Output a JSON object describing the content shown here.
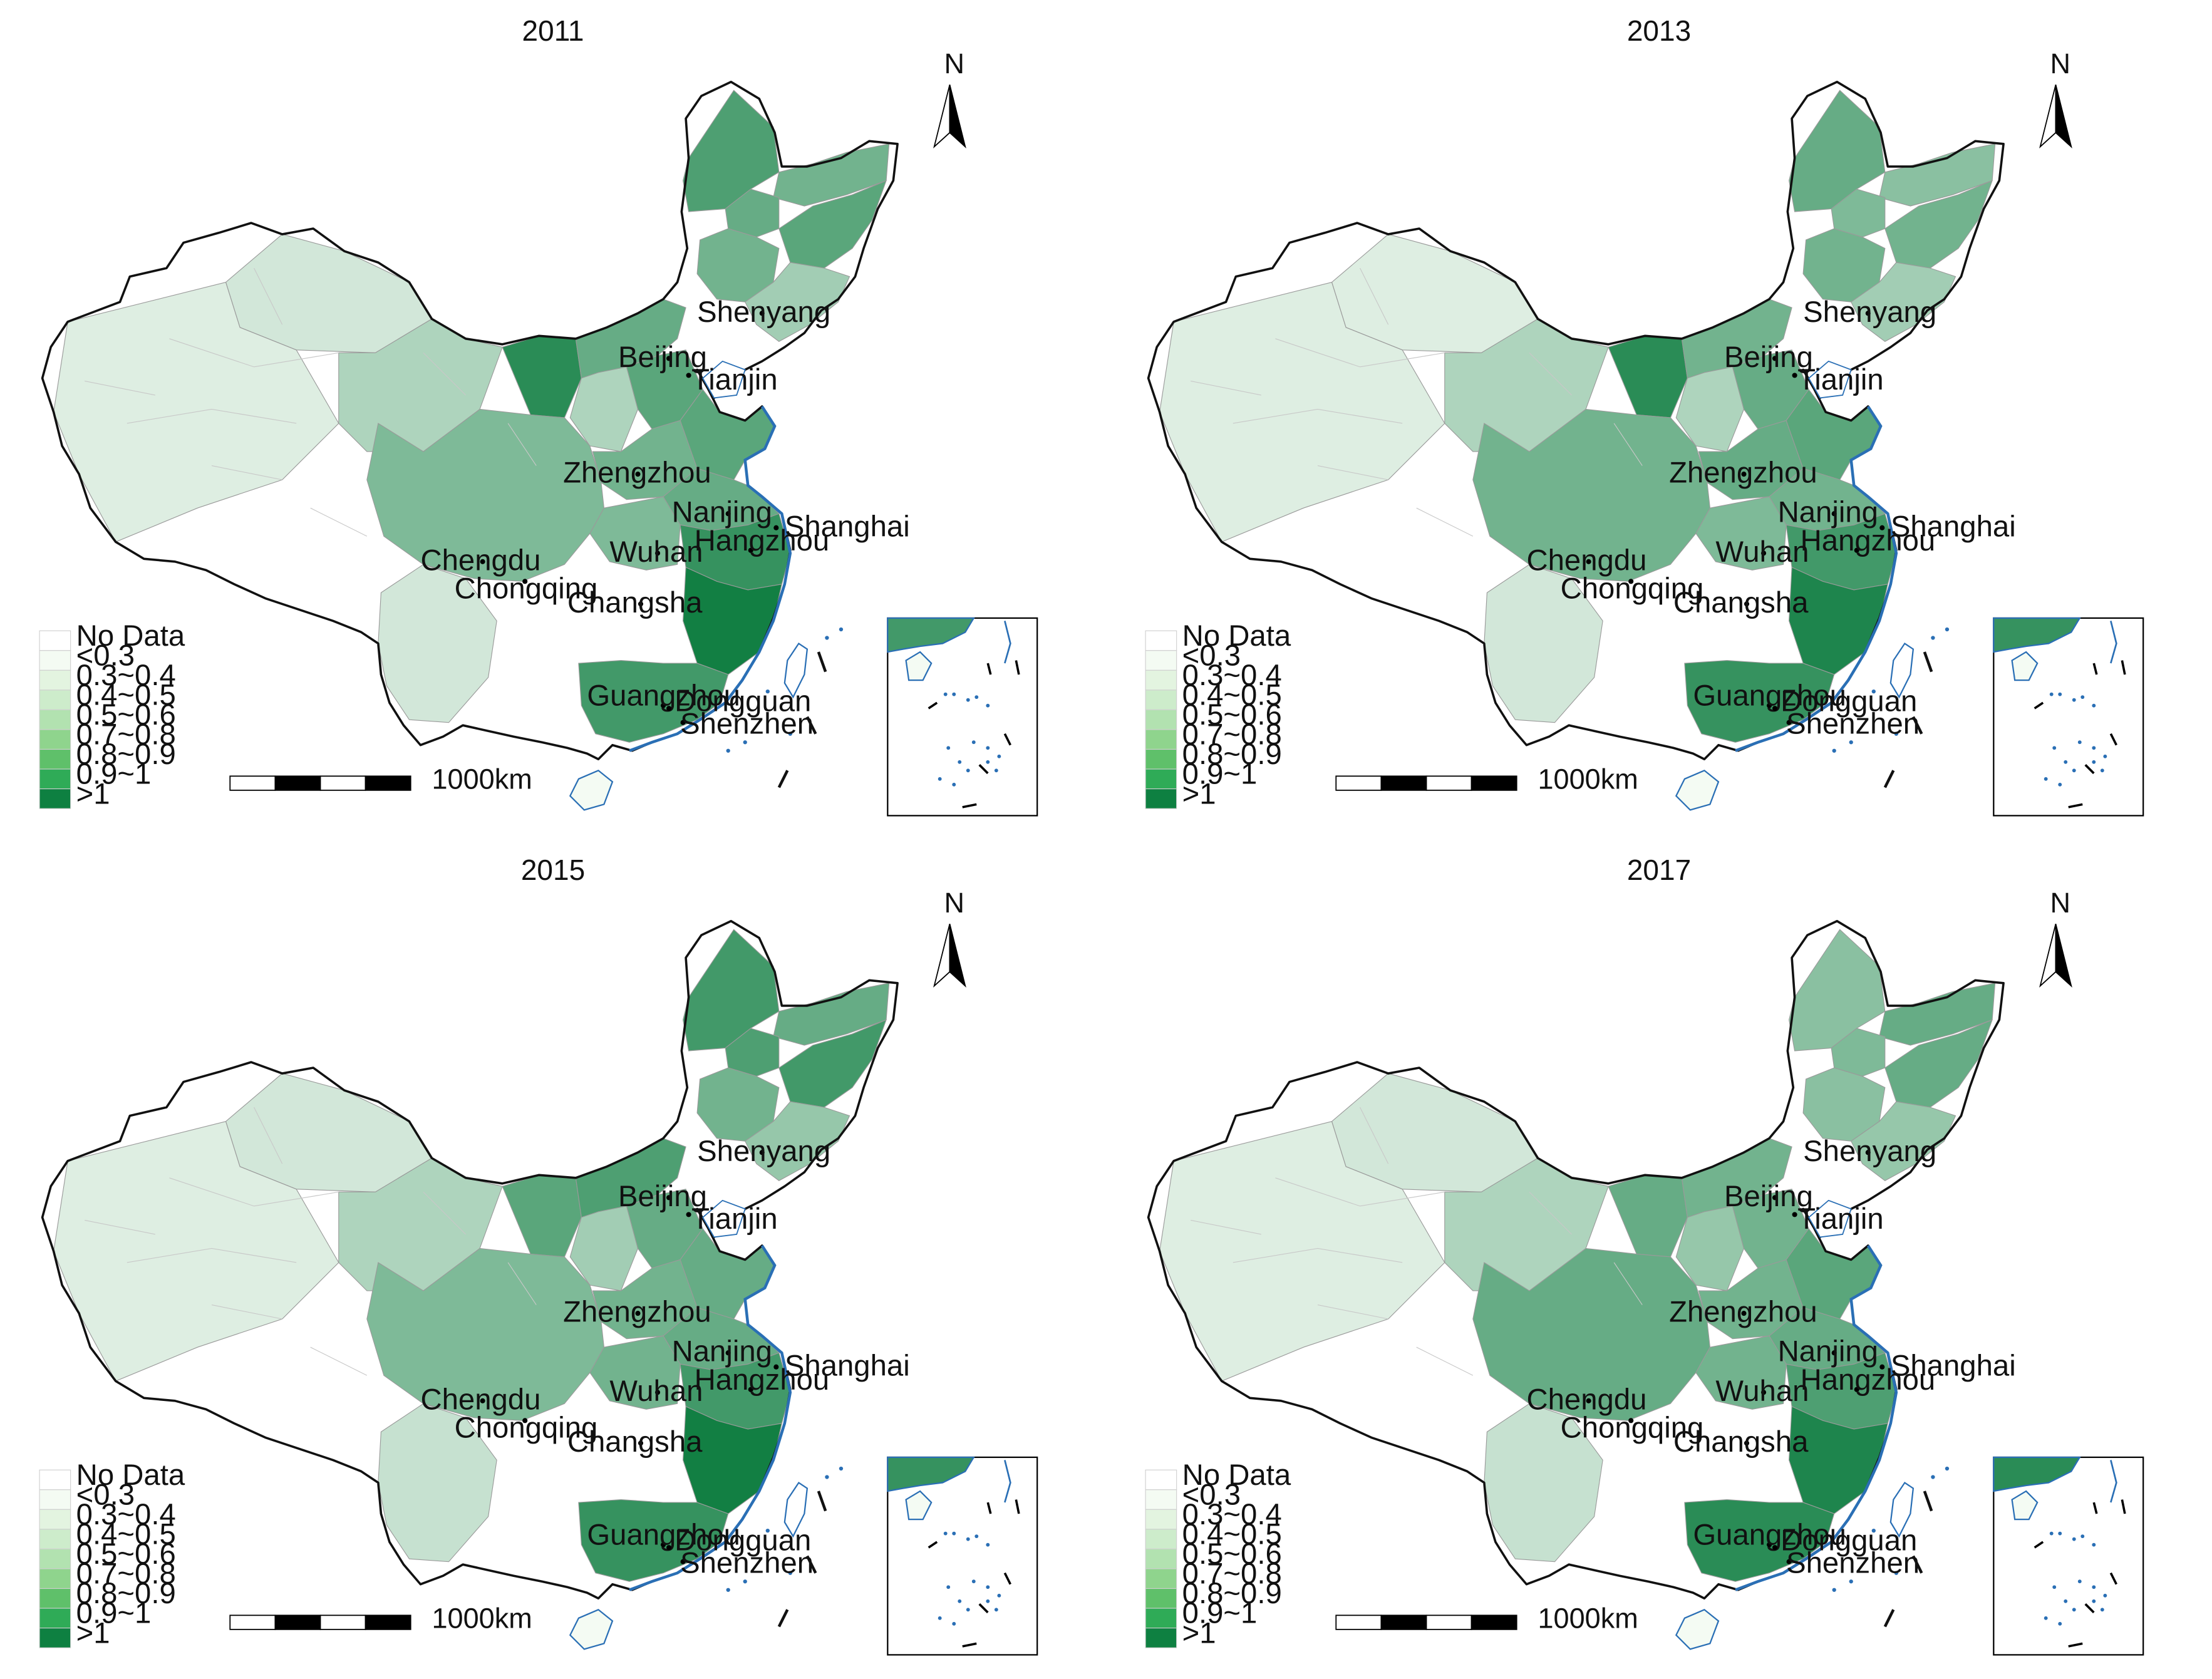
{
  "panels": [
    {
      "year": "2011",
      "intensity": [
        0.7,
        0.55,
        0.6,
        0.65,
        0.55,
        0.35,
        0.15,
        0.1,
        0.3,
        0.85,
        0.6,
        0.3,
        0.65,
        0.55,
        0.65,
        0.6,
        0.5,
        0.8,
        0.95,
        0.75,
        0.15,
        0.5
      ]
    },
    {
      "year": "2013",
      "intensity": [
        0.6,
        0.45,
        0.5,
        0.55,
        0.55,
        0.35,
        0.1,
        0.1,
        0.3,
        0.85,
        0.55,
        0.3,
        0.6,
        0.6,
        0.65,
        0.55,
        0.5,
        0.75,
        0.9,
        0.8,
        0.15,
        0.55
      ]
    },
    {
      "year": "2015",
      "intensity": [
        0.75,
        0.6,
        0.7,
        0.75,
        0.55,
        0.4,
        0.15,
        0.1,
        0.3,
        0.65,
        0.7,
        0.35,
        0.6,
        0.55,
        0.6,
        0.6,
        0.55,
        0.75,
        0.95,
        0.8,
        0.2,
        0.5
      ]
    },
    {
      "year": "2017",
      "intensity": [
        0.45,
        0.6,
        0.5,
        0.6,
        0.45,
        0.4,
        0.15,
        0.1,
        0.3,
        0.6,
        0.55,
        0.4,
        0.55,
        0.55,
        0.65,
        0.6,
        0.55,
        0.7,
        0.9,
        0.85,
        0.2,
        0.6
      ]
    }
  ],
  "north_label": "N",
  "scale_label": "1000km",
  "legend": {
    "items": [
      {
        "label": "No Data",
        "color": "#ffffff"
      },
      {
        "label": "<0.3",
        "color": "#f4fbf3"
      },
      {
        "label": "0.3~0.4",
        "color": "#e3f4e0"
      },
      {
        "label": "0.4~0.5",
        "color": "#cdeccb"
      },
      {
        "label": "0.5~0.6",
        "color": "#b2e2b0"
      },
      {
        "label": "0.7~0.8",
        "color": "#8fd48d"
      },
      {
        "label": "0.8~0.9",
        "color": "#5fc06a"
      },
      {
        "label": "0.9~1",
        "color": "#2fab57"
      },
      {
        "label": ">1",
        "color": "#0e8041"
      }
    ]
  },
  "cities": [
    {
      "name": "Shenyang"
    },
    {
      "name": "Beijing"
    },
    {
      "name": "Tianjin"
    },
    {
      "name": "Zhengzhou"
    },
    {
      "name": "Nanjing"
    },
    {
      "name": "Shanghai"
    },
    {
      "name": "Hangzhou"
    },
    {
      "name": "Wuhan"
    },
    {
      "name": "Chengdu"
    },
    {
      "name": "Chongqing"
    },
    {
      "name": "Changsha"
    },
    {
      "name": "Guangzhou"
    },
    {
      "name": "Dongguan"
    },
    {
      "name": "Shenzhen"
    }
  ],
  "colors": {
    "border": "#111111",
    "province_line": "#9a9a9a",
    "coast": "#2a6fb5",
    "sea_dots": "#2a6fb5"
  }
}
